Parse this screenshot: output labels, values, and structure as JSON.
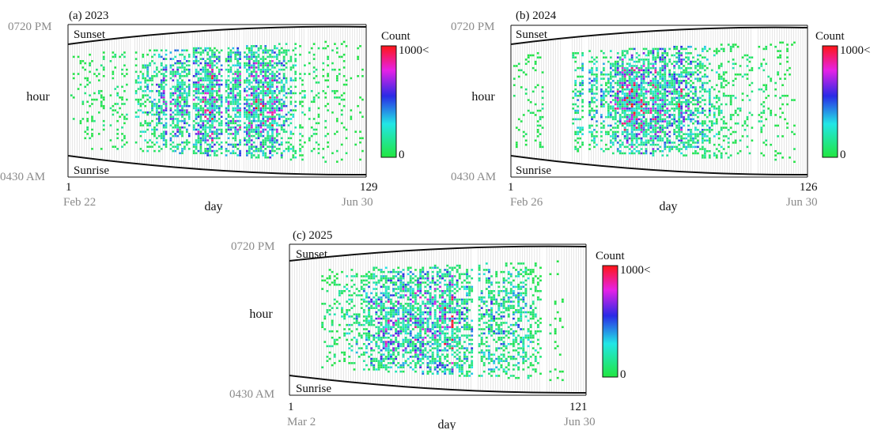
{
  "gradient_colors": [
    "#22e640",
    "#22e6e6",
    "#2a2ae6",
    "#e622e6",
    "#ff1515"
  ],
  "grid_color": "#bdbdbd",
  "chart_data": [
    {
      "type": "heatmap",
      "title": "(a) 2023",
      "xlabel": "day",
      "ylabel": "hour",
      "x_range": [
        1,
        129
      ],
      "x_start_tick": "1",
      "x_end_tick": "129",
      "start_date": "Feb 22",
      "end_date": "Jun 30",
      "y_top_label": "0720 PM",
      "y_bottom_label": "0430 AM",
      "sunset_label": "Sunset",
      "sunrise_label": "Sunrise",
      "colorbar": {
        "title": "Count",
        "max_label": "1000<",
        "min_label": "0"
      },
      "empty_days": [
        29,
        44,
        54,
        68,
        76,
        100,
        104
      ],
      "grid_days": [
        1,
        4,
        17,
        18,
        27,
        28,
        110,
        114,
        122,
        124,
        129
      ],
      "activity": [
        {
          "day": 2,
          "level": 0.08
        },
        {
          "day": 10,
          "level": 0.1
        },
        {
          "day": 20,
          "level": 0.12
        },
        {
          "day": 30,
          "level": 0.22
        },
        {
          "day": 35,
          "level": 0.32
        },
        {
          "day": 40,
          "level": 0.45
        },
        {
          "day": 45,
          "level": 0.68
        },
        {
          "day": 48,
          "level": 0.75
        },
        {
          "day": 52,
          "level": 0.55
        },
        {
          "day": 57,
          "level": 0.62
        },
        {
          "day": 60,
          "level": 0.85
        },
        {
          "day": 63,
          "level": 0.92
        },
        {
          "day": 66,
          "level": 0.55
        },
        {
          "day": 70,
          "level": 0.62
        },
        {
          "day": 73,
          "level": 0.78
        },
        {
          "day": 79,
          "level": 0.7
        },
        {
          "day": 82,
          "level": 0.8
        },
        {
          "day": 86,
          "level": 0.92
        },
        {
          "day": 89,
          "level": 0.85
        },
        {
          "day": 93,
          "level": 0.5
        },
        {
          "day": 97,
          "level": 0.32
        },
        {
          "day": 102,
          "level": 0.18
        },
        {
          "day": 108,
          "level": 0.12
        },
        {
          "day": 116,
          "level": 0.1
        },
        {
          "day": 126,
          "level": 0.04
        }
      ]
    },
    {
      "type": "heatmap",
      "title": "(b) 2024",
      "xlabel": "day",
      "ylabel": "hour",
      "x_range": [
        1,
        126
      ],
      "x_start_tick": "1",
      "x_end_tick": "126",
      "start_date": "Feb 26",
      "end_date": "Jun 30",
      "y_top_label": "0720 PM",
      "y_bottom_label": "0430 AM",
      "sunset_label": "Sunset",
      "sunrise_label": "Sunrise",
      "colorbar": {
        "title": "Count",
        "max_label": "1000<",
        "min_label": "0"
      },
      "empty_days": [
        23,
        24,
        25,
        26,
        32,
        33,
        104,
        105
      ],
      "grid_days": [
        1,
        15,
        16,
        17,
        18,
        19,
        20,
        21,
        22,
        38,
        112,
        122,
        123,
        124,
        125,
        126
      ],
      "activity": [
        {
          "day": 2,
          "level": 0.08
        },
        {
          "day": 12,
          "level": 0.1
        },
        {
          "day": 28,
          "level": 0.28
        },
        {
          "day": 35,
          "level": 0.45
        },
        {
          "day": 40,
          "level": 0.35
        },
        {
          "day": 45,
          "level": 0.6
        },
        {
          "day": 49,
          "level": 0.82
        },
        {
          "day": 53,
          "level": 0.92
        },
        {
          "day": 57,
          "level": 0.88
        },
        {
          "day": 61,
          "level": 0.8
        },
        {
          "day": 65,
          "level": 0.72
        },
        {
          "day": 70,
          "level": 0.7
        },
        {
          "day": 75,
          "level": 0.58
        },
        {
          "day": 80,
          "level": 0.45
        },
        {
          "day": 87,
          "level": 0.3
        },
        {
          "day": 95,
          "level": 0.18
        },
        {
          "day": 108,
          "level": 0.12
        },
        {
          "day": 118,
          "level": 0.06
        }
      ]
    },
    {
      "type": "heatmap",
      "title": "(c) 2025",
      "xlabel": "day",
      "ylabel": "hour",
      "x_range": [
        1,
        121
      ],
      "x_start_tick": "1",
      "x_end_tick": "121",
      "start_date": "Mar 2",
      "end_date": "Jun 30",
      "y_top_label": "0720 PM",
      "y_bottom_label": "0430 AM",
      "sunset_label": "Sunset",
      "sunrise_label": "Sunrise",
      "colorbar": {
        "title": "Count",
        "max_label": "1000<",
        "min_label": "0"
      },
      "empty_days": [
        76,
        77,
        104,
        105
      ],
      "grid_days": [
        1,
        2,
        3,
        4,
        5,
        6,
        7,
        8,
        9,
        10,
        11,
        12,
        13,
        106,
        108,
        113,
        114,
        115,
        116,
        117,
        118,
        119,
        120,
        121
      ],
      "activity": [
        {
          "day": 15,
          "level": 0.1
        },
        {
          "day": 22,
          "level": 0.2
        },
        {
          "day": 30,
          "level": 0.35
        },
        {
          "day": 35,
          "level": 0.55
        },
        {
          "day": 40,
          "level": 0.7
        },
        {
          "day": 45,
          "level": 0.78
        },
        {
          "day": 50,
          "level": 0.68
        },
        {
          "day": 55,
          "level": 0.62
        },
        {
          "day": 60,
          "level": 0.85
        },
        {
          "day": 65,
          "level": 0.8
        },
        {
          "day": 70,
          "level": 0.62
        },
        {
          "day": 74,
          "level": 0.45
        },
        {
          "day": 80,
          "level": 0.5
        },
        {
          "day": 85,
          "level": 0.45
        },
        {
          "day": 90,
          "level": 0.4
        },
        {
          "day": 95,
          "level": 0.35
        },
        {
          "day": 100,
          "level": 0.25
        },
        {
          "day": 103,
          "level": 0.15
        },
        {
          "day": 109,
          "level": 0.05
        }
      ]
    }
  ]
}
